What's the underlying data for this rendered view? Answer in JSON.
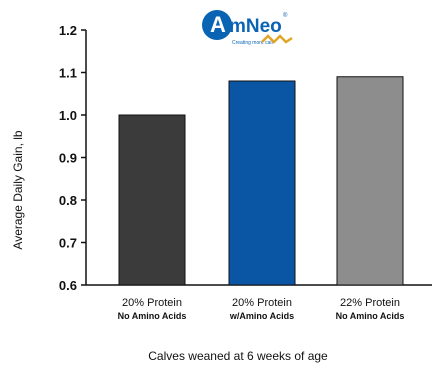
{
  "chart_data": {
    "type": "bar",
    "categories": [
      {
        "line1": "20% Protein",
        "line2": "No Amino Acids"
      },
      {
        "line1": "20% Protein",
        "line2": "w/Amino Acids"
      },
      {
        "line1": "22% Protein",
        "line2": "No Amino Acids"
      }
    ],
    "values": [
      1.0,
      1.08,
      1.09
    ],
    "bar_colors": [
      "#3b3b3b",
      "#0a56a5",
      "#8d8d8d"
    ],
    "ylabel": "Average Daily Gain, lb",
    "xlabel": "Calves weaned at 6 weeks of age",
    "ylim": [
      0.6,
      1.2
    ],
    "yticks": [
      "0.6",
      "0.7",
      "0.8",
      "0.9",
      "1.0",
      "1.1",
      "1.2"
    ],
    "grid": false
  },
  "logo": {
    "brand_a": "A",
    "brand_rest": "mNeo",
    "registered": "®",
    "tagline": "Creating more calf",
    "colors": {
      "circle": "#0a64b4",
      "wave": "#e0a626"
    }
  }
}
